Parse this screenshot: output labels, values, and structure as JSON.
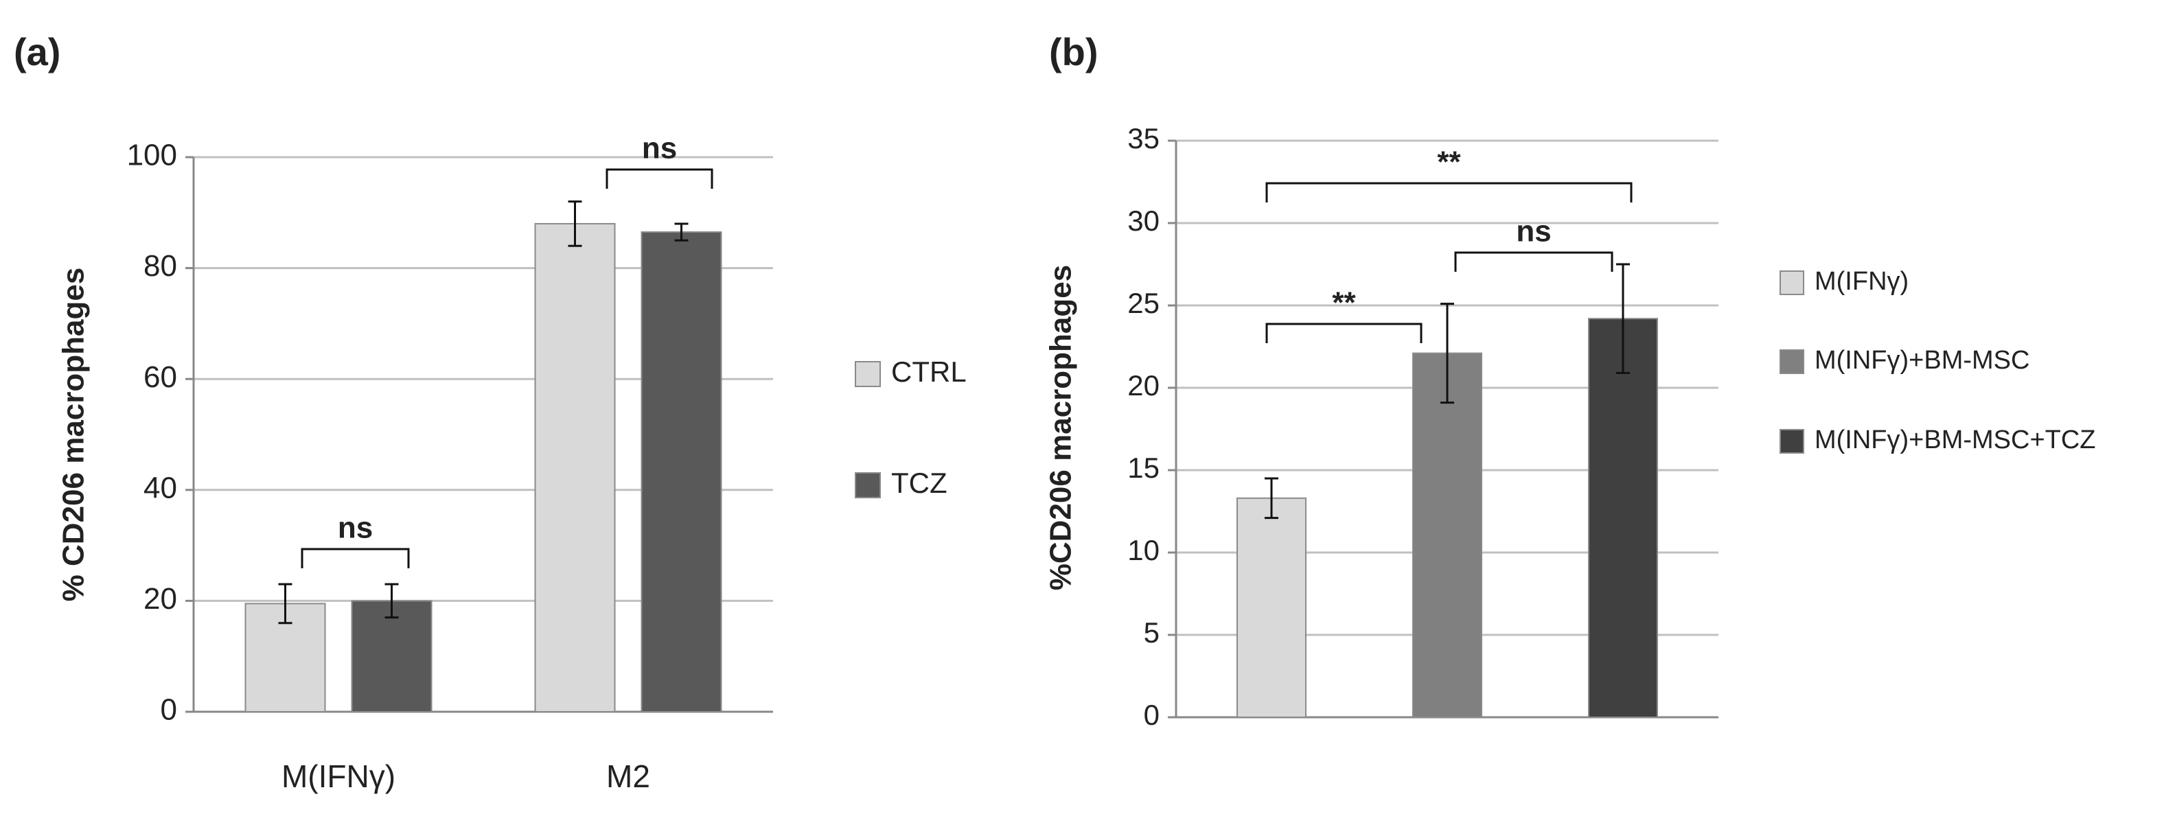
{
  "chart_data": [
    {
      "type": "bar",
      "panel_label": "(a)",
      "ylabel": "% CD206 macrophages",
      "categories": [
        "M(IFNγ)",
        "M2"
      ],
      "series": [
        {
          "name": "CTRL",
          "color": "#d9d9d9",
          "values": [
            19.5,
            88
          ],
          "errors": [
            3.5,
            4
          ]
        },
        {
          "name": "TCZ",
          "color": "#595959",
          "values": [
            20,
            86.5
          ],
          "errors": [
            3,
            1.5
          ]
        }
      ],
      "ylim": [
        0,
        100
      ],
      "yticks": [
        0,
        20,
        40,
        60,
        80,
        100
      ],
      "grid": true,
      "annotations": [
        "ns",
        "ns"
      ]
    },
    {
      "type": "bar",
      "panel_label": "(b)",
      "ylabel": "%CD206 macrophages",
      "categories": [
        null
      ],
      "series": [
        {
          "name": "M(IFNγ)",
          "color": "#d9d9d9",
          "values": [
            13.3
          ],
          "errors": [
            1.2
          ]
        },
        {
          "name": "M(INFγ)+BM-MSC",
          "color": "#808080",
          "values": [
            22.1
          ],
          "errors": [
            3
          ]
        },
        {
          "name": "M(INFγ)+BM-MSC+TCZ",
          "color": "#404040",
          "values": [
            24.2
          ],
          "errors": [
            3.3
          ]
        }
      ],
      "ylim": [
        0,
        35
      ],
      "yticks": [
        0,
        5,
        10,
        15,
        20,
        25,
        30,
        35
      ],
      "grid": true,
      "annotations": [
        "**",
        "ns",
        "**"
      ]
    }
  ]
}
